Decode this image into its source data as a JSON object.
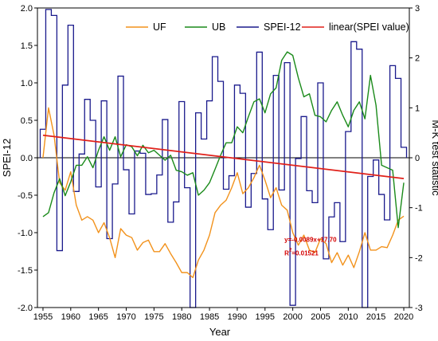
{
  "chart_data": {
    "type": "line",
    "xlabel": "Year",
    "ylabel": "SPEI-12",
    "y2label": "M-K test statistic",
    "xlim": [
      1954,
      2021
    ],
    "ylim": [
      -2.0,
      2.0
    ],
    "y2lim": [
      -3,
      3
    ],
    "xticks": [
      1955,
      1960,
      1965,
      1970,
      1975,
      1980,
      1985,
      1990,
      1995,
      2000,
      2005,
      2010,
      2015,
      2020
    ],
    "yticks": [
      "2.0",
      "1.5",
      "1.0",
      "0.5",
      "0.0",
      "-0.5",
      "-1.0",
      "-1.5",
      "-2.0"
    ],
    "y2ticks": [
      "3",
      "2",
      "1",
      "0",
      "-1",
      "-2",
      "-3"
    ],
    "legend_position": "top",
    "legend": [
      "UF",
      "UB",
      "SPEI-12",
      "linear(SPEI value)"
    ],
    "annotation": {
      "equation": "y=-0.0089x+17.70",
      "r2_prefix": "R",
      "r2_sup": "2",
      "r2_value": "=0.01521",
      "x": 1998.5,
      "y": -1.12
    },
    "colors": {
      "UF": "#f2921c",
      "UB": "#1a8a1a",
      "SPEI": "#1a1a8c",
      "linear": "#e0201a"
    },
    "years": [
      1955,
      1956,
      1957,
      1958,
      1959,
      1960,
      1961,
      1962,
      1963,
      1964,
      1965,
      1966,
      1967,
      1968,
      1969,
      1970,
      1971,
      1972,
      1973,
      1974,
      1975,
      1976,
      1977,
      1978,
      1979,
      1980,
      1981,
      1982,
      1983,
      1984,
      1985,
      1986,
      1987,
      1988,
      1989,
      1990,
      1991,
      1992,
      1993,
      1994,
      1995,
      1996,
      1997,
      1998,
      1999,
      2000,
      2001,
      2002,
      2003,
      2004,
      2005,
      2006,
      2007,
      2008,
      2009,
      2010,
      2011,
      2012,
      2013,
      2014,
      2015,
      2016,
      2017,
      2018,
      2019,
      2020
    ],
    "series": [
      {
        "name": "SPEI-12",
        "axis": "left",
        "style": "step",
        "values": [
          0.38,
          1.98,
          1.9,
          -1.24,
          0.97,
          1.77,
          -0.45,
          0.05,
          0.78,
          0.5,
          -0.39,
          0.76,
          -1.08,
          -0.35,
          1.09,
          -0.16,
          -0.75,
          0.09,
          0.06,
          -0.49,
          -0.48,
          -0.23,
          0.51,
          -0.86,
          -0.59,
          0.75,
          -0.4,
          -2.0,
          0.6,
          0.25,
          0.76,
          1.35,
          1.02,
          -0.42,
          -0.24,
          0.97,
          0.86,
          -0.66,
          -0.21,
          1.41,
          -0.55,
          -0.96,
          1.1,
          -0.43,
          1.27,
          -1.97,
          -0.01,
          0.55,
          -0.44,
          -0.6,
          1.0,
          -1.35,
          -0.79,
          -0.6,
          -1.12,
          0.35,
          1.55,
          1.45,
          -2.0,
          -0.25,
          -0.03,
          -0.49,
          -0.83,
          1.23,
          1.06,
          0.14
        ]
      },
      {
        "name": "UF",
        "axis": "right",
        "style": "line",
        "values": [
          0.0,
          1.0,
          0.45,
          -0.5,
          -0.65,
          -0.28,
          -0.95,
          -1.25,
          -1.18,
          -1.25,
          -1.5,
          -1.3,
          -1.6,
          -2.0,
          -1.42,
          -1.55,
          -1.6,
          -1.85,
          -1.7,
          -1.65,
          -1.88,
          -1.88,
          -1.72,
          -1.92,
          -2.1,
          -2.3,
          -2.3,
          -2.4,
          -2.05,
          -1.85,
          -1.55,
          -1.1,
          -0.95,
          -0.85,
          -0.6,
          -0.3,
          -0.72,
          -0.6,
          -0.4,
          -0.15,
          -0.45,
          -0.8,
          -0.6,
          -0.95,
          -1.05,
          -1.5,
          -1.75,
          -1.55,
          -1.85,
          -1.9,
          -1.62,
          -1.72,
          -2.1,
          -1.9,
          -2.15,
          -1.95,
          -2.2,
          -1.88,
          -1.5,
          -1.85,
          -1.85,
          -1.78,
          -1.8,
          -1.55,
          -1.25,
          -1.17
        ]
      },
      {
        "name": "UB",
        "axis": "right",
        "style": "line",
        "values": [
          -1.18,
          -1.1,
          -0.7,
          -0.42,
          -0.76,
          -0.48,
          -0.15,
          -0.15,
          0.02,
          -0.2,
          0.15,
          0.42,
          0.15,
          0.42,
          0.02,
          0.26,
          0.22,
          0.04,
          0.25,
          0.1,
          0.15,
          0.05,
          -0.05,
          0.05,
          -0.25,
          -0.28,
          -0.35,
          -0.3,
          -0.75,
          -0.65,
          -0.5,
          -0.23,
          0.05,
          0.3,
          0.3,
          0.62,
          0.5,
          0.82,
          1.12,
          1.18,
          0.9,
          1.28,
          1.4,
          1.95,
          2.12,
          2.05,
          1.6,
          1.22,
          1.28,
          0.85,
          0.82,
          0.72,
          0.95,
          1.12,
          0.85,
          0.62,
          0.95,
          1.12,
          0.78,
          1.65,
          1.05,
          -0.15,
          -0.2,
          -0.25,
          -1.4,
          -0.5
        ]
      },
      {
        "name": "linear(SPEI value)",
        "axis": "left",
        "style": "fit",
        "slope": -0.0089,
        "intercept": 17.7
      }
    ]
  }
}
